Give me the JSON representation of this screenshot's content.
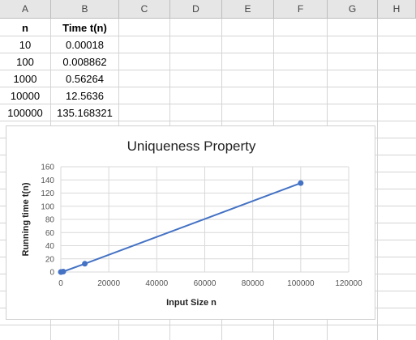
{
  "columns": [
    "A",
    "B",
    "C",
    "D",
    "E",
    "F",
    "G",
    "H"
  ],
  "table": {
    "headers": [
      "n",
      "Time t(n)"
    ],
    "rows": [
      [
        "10",
        "0.00018"
      ],
      [
        "100",
        "0.008862"
      ],
      [
        "1000",
        "0.56264"
      ],
      [
        "10000",
        "12.5636"
      ],
      [
        "100000",
        "135.168321"
      ]
    ]
  },
  "chart_data": {
    "type": "scatter",
    "title": "Uniqueness Property",
    "xlabel": "Input Size n",
    "ylabel": "Running time t(n)",
    "xlim": [
      0,
      120000
    ],
    "ylim": [
      0,
      160
    ],
    "xticks": [
      "0",
      "20000",
      "40000",
      "60000",
      "80000",
      "100000",
      "120000"
    ],
    "yticks": [
      "0",
      "20",
      "40",
      "60",
      "80",
      "100",
      "120",
      "140",
      "160"
    ],
    "grid": true,
    "series": [
      {
        "x": [
          10,
          100,
          1000,
          10000,
          100000
        ],
        "y": [
          0.00018,
          0.008862,
          0.56264,
          12.5636,
          135.168321
        ],
        "color": "#4472c4"
      }
    ]
  }
}
